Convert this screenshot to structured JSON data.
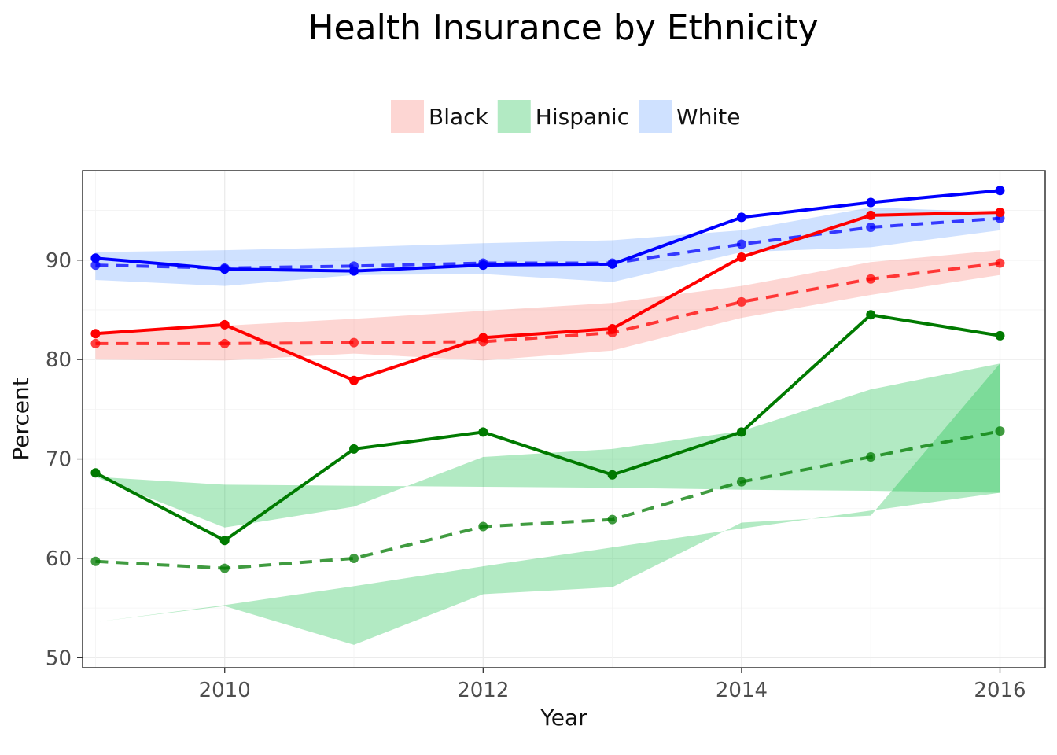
{
  "chart_data": {
    "type": "line",
    "title": "Health Insurance by Ethnicity",
    "xlabel": "Year",
    "ylabel": "Percent",
    "xlim": [
      2008.9,
      2016.35
    ],
    "ylim": [
      49.0,
      99.0
    ],
    "x_ticks": [
      2010,
      2012,
      2014,
      2016
    ],
    "y_ticks": [
      50,
      60,
      70,
      80,
      90
    ],
    "grid": true,
    "legend_position": "top",
    "legend": [
      {
        "name": "Black",
        "color": "#f8766d"
      },
      {
        "name": "Hispanic",
        "color": "#00ba38"
      },
      {
        "name": "White",
        "color": "#619cff"
      }
    ],
    "x": [
      2009,
      2010,
      2011,
      2012,
      2013,
      2014,
      2015,
      2016
    ],
    "series": [
      {
        "name": "White",
        "color": "#0000ff",
        "band_color": "#619cff",
        "solid": [
          90.2,
          89.1,
          88.9,
          89.5,
          89.6,
          94.3,
          95.8,
          97.0
        ],
        "dashed": [
          89.5,
          89.2,
          89.4,
          89.7,
          89.7,
          91.6,
          93.3,
          94.2
        ],
        "band_upper": [
          90.8,
          91.0,
          91.3,
          91.7,
          92.0,
          93.0,
          95.3,
          94.8
        ],
        "band_lower": [
          88.0,
          87.4,
          88.5,
          88.6,
          87.8,
          90.8,
          91.3,
          93.0
        ]
      },
      {
        "name": "Black",
        "color": "#ff0000",
        "band_color": "#f8766d",
        "solid": [
          82.6,
          83.5,
          77.9,
          82.2,
          83.1,
          90.3,
          94.5,
          94.8
        ],
        "dashed": [
          81.6,
          81.6,
          81.7,
          81.8,
          82.7,
          85.8,
          88.1,
          89.7
        ],
        "band_upper": [
          82.8,
          83.4,
          84.1,
          84.9,
          85.7,
          87.4,
          89.8,
          91.0
        ],
        "band_lower": [
          80.0,
          79.9,
          80.6,
          79.9,
          80.9,
          84.2,
          86.5,
          88.5
        ]
      },
      {
        "name": "Hispanic",
        "color": "#007a00",
        "band_color": "#00ba38",
        "solid": [
          68.6,
          61.8,
          71.0,
          72.7,
          68.4,
          72.7,
          84.5,
          82.4
        ],
        "dashed": [
          59.7,
          59.0,
          60.0,
          63.2,
          63.9,
          67.7,
          70.2,
          72.8
        ],
        "band_upper": [
          68.2,
          67.4,
          67.3,
          67.2,
          67.1,
          66.9,
          66.8,
          66.6
        ],
        "band_lower": [
          68.2,
          63.1,
          65.2,
          70.2,
          71.0,
          72.8,
          77.0,
          79.6
        ],
        "band2_upper": [
          53.6,
          55.3,
          57.2,
          59.2,
          61.1,
          63.0,
          64.8,
          66.6
        ],
        "band2_lower": [
          53.6,
          55.2,
          51.3,
          56.4,
          57.1,
          63.6,
          64.3,
          79.6
        ]
      }
    ]
  }
}
